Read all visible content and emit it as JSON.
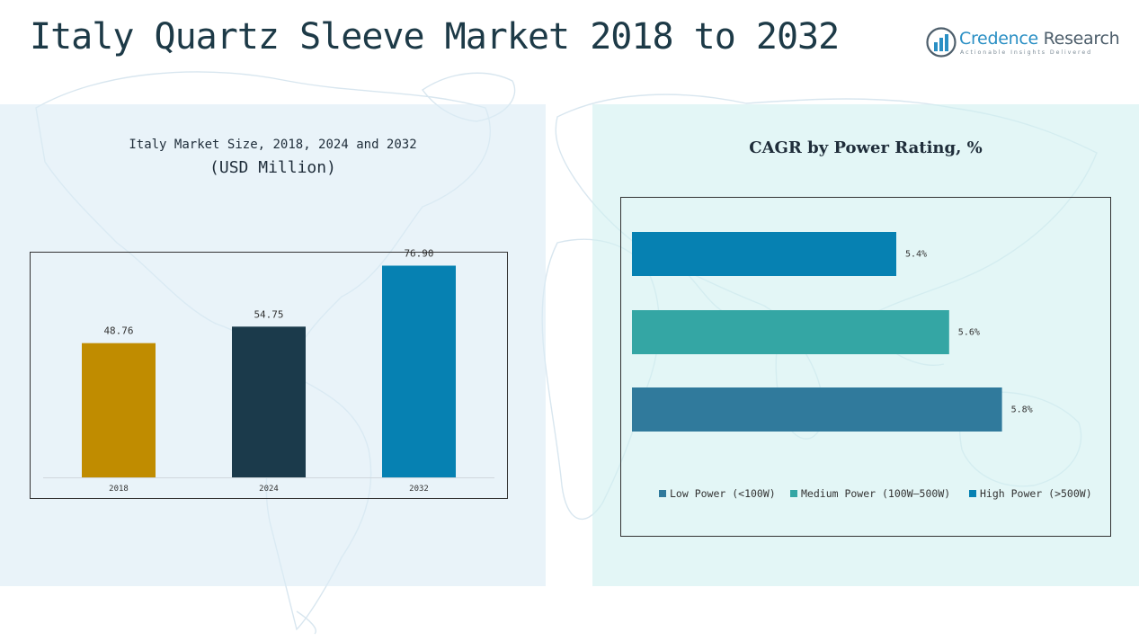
{
  "header": {
    "title": "Italy Quartz Sleeve Market 2018 to 2032"
  },
  "logo": {
    "name_part1": "Credence",
    "name_part2": " Research",
    "tagline": "Actionable Insights Delivered"
  },
  "colors": {
    "gold": "#c08c00",
    "navy": "#1b3a4b",
    "blue": "#0681b2",
    "teal": "#34a6a4",
    "steel": "#307a9c"
  },
  "chart_data": [
    {
      "type": "bar",
      "title": "Italy Market Size, 2018, 2024 and 2032",
      "subtitle": "(USD Million)",
      "categories": [
        "2018",
        "2024",
        "2032"
      ],
      "values": [
        48.76,
        54.75,
        76.9
      ],
      "value_labels": [
        "48.76",
        "54.75",
        "76.90"
      ],
      "colors": [
        "#c08c00",
        "#1b3a4b",
        "#0681b2"
      ],
      "ylim": [
        0,
        80
      ],
      "grid": false,
      "legend": "none"
    },
    {
      "type": "bar",
      "orientation": "horizontal",
      "title": "CAGR by Power Rating, %",
      "categories": [
        "Low Power (<100W)",
        "Medium Power (100W–500W)",
        "High Power (>500W)"
      ],
      "values": [
        5.4,
        5.6,
        5.8
      ],
      "value_labels": [
        "5.4%",
        "5.6%",
        "5.8%"
      ],
      "colors": [
        "#0681b2",
        "#34a6a4",
        "#307a9c"
      ],
      "legend_labels": [
        "Low Power (<100W)",
        "Medium Power (100W–500W)",
        "High Power (>500W)"
      ],
      "legend_colors": [
        "#307a9c",
        "#34a6a4",
        "#0681b2"
      ],
      "xlim": [
        4.4,
        5.9
      ],
      "grid": false,
      "legend": "bottom"
    }
  ]
}
